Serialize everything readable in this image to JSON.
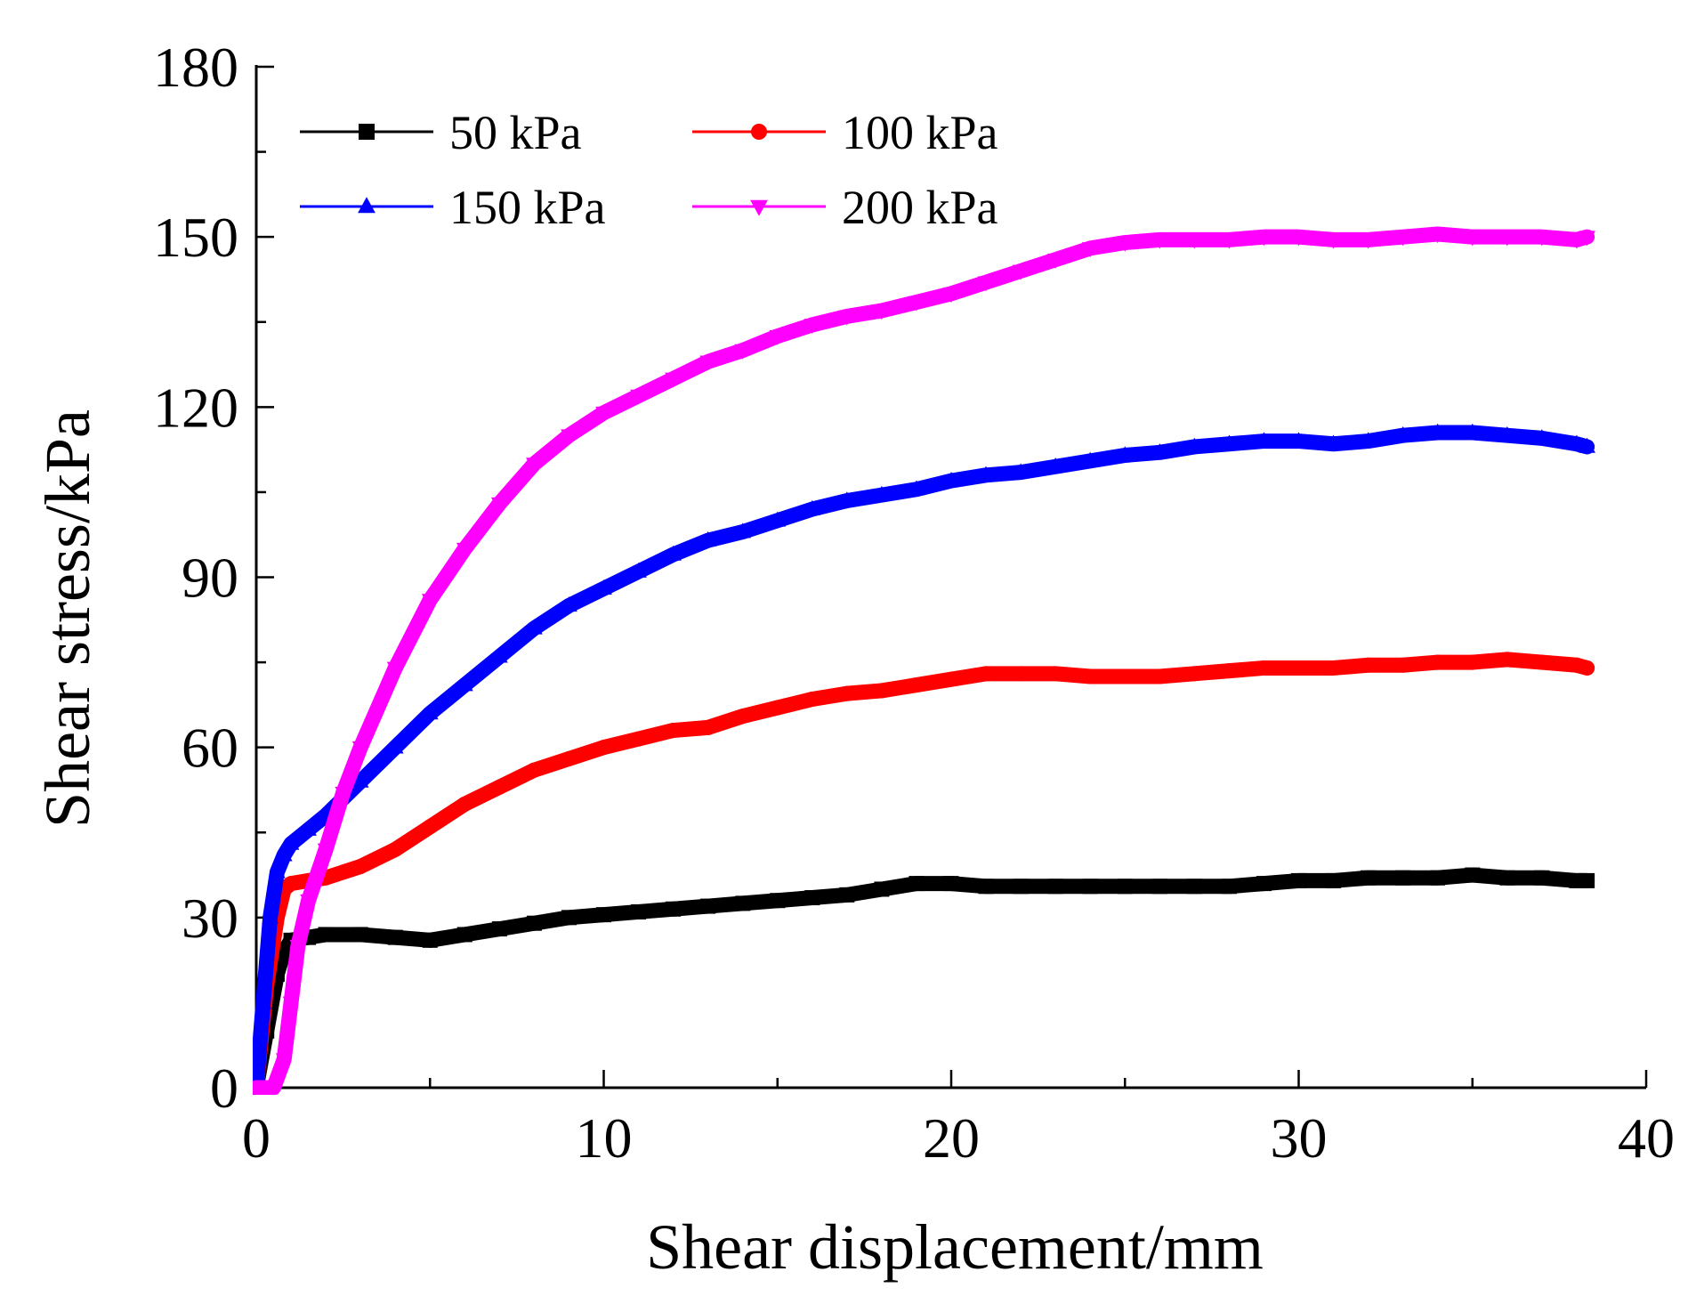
{
  "chart_data": {
    "type": "line",
    "title": "",
    "xlabel": "Shear displacement/mm",
    "ylabel": "Shear stress/kPa",
    "xlim": [
      0,
      40
    ],
    "ylim": [
      0,
      180
    ],
    "xticks": [
      0,
      10,
      20,
      30,
      40
    ],
    "xtick_labels": [
      "0",
      "10",
      "20",
      "30",
      "40"
    ],
    "yticks": [
      0,
      30,
      60,
      90,
      120,
      150,
      180
    ],
    "ytick_labels": [
      "0",
      "30",
      "60",
      "90",
      "120",
      "150",
      "180"
    ],
    "grid": false,
    "legend_position": "top-left",
    "series": [
      {
        "name": "50 kPa",
        "label": "50 kPa",
        "color": "#000000",
        "marker": "square",
        "x": [
          0,
          0.3,
          0.6,
          0.8,
          1.0,
          1.5,
          2,
          3,
          4,
          5,
          6,
          7,
          8,
          9,
          10,
          11,
          12,
          13,
          14,
          15,
          16,
          17,
          18,
          19,
          20,
          21,
          22,
          23,
          24,
          25,
          26,
          27,
          28,
          29,
          30,
          31,
          32,
          33,
          34,
          35,
          36,
          37,
          38,
          38.3
        ],
        "y": [
          0,
          10,
          20,
          24,
          26,
          26.5,
          27,
          27,
          26.5,
          26,
          27,
          28,
          29,
          30,
          30.5,
          31,
          31.5,
          32,
          32.5,
          33,
          33.5,
          34,
          35,
          36,
          36,
          35.5,
          35.5,
          35.5,
          35.5,
          35.5,
          35.5,
          35.5,
          35.5,
          36,
          36.5,
          36.5,
          37,
          37,
          37,
          37.5,
          37,
          37,
          36.5,
          36.5
        ]
      },
      {
        "name": "100 kPa",
        "label": "100 kPa",
        "color": "#ff0000",
        "marker": "circle",
        "x": [
          0,
          0.3,
          0.6,
          0.8,
          1.0,
          1.5,
          2,
          3,
          4,
          5,
          6,
          7,
          8,
          9,
          10,
          11,
          12,
          13,
          14,
          15,
          16,
          17,
          18,
          19,
          20,
          21,
          22,
          23,
          24,
          25,
          26,
          27,
          28,
          29,
          30,
          31,
          32,
          33,
          34,
          35,
          36,
          37,
          38,
          38.3
        ],
        "y": [
          0,
          18,
          30,
          35,
          36,
          36.5,
          37,
          39,
          42,
          46,
          50,
          53,
          56,
          58,
          60,
          61.5,
          63,
          63.5,
          65.5,
          67,
          68.5,
          69.5,
          70,
          71,
          72,
          73,
          73,
          73,
          72.5,
          72.5,
          72.5,
          73,
          73.5,
          74,
          74,
          74,
          74.5,
          74.5,
          75,
          75,
          75.5,
          75,
          74.5,
          74
        ]
      },
      {
        "name": "150 kPa",
        "label": "150 kPa",
        "color": "#0000ff",
        "marker": "triangle-up",
        "x": [
          0,
          0.2,
          0.4,
          0.6,
          0.8,
          1.0,
          1.5,
          2,
          3,
          4,
          5,
          6,
          7,
          8,
          9,
          10,
          11,
          12,
          13,
          14,
          15,
          16,
          17,
          18,
          19,
          20,
          21,
          22,
          23,
          24,
          25,
          26,
          27,
          28,
          29,
          30,
          31,
          32,
          33,
          34,
          35,
          36,
          37,
          38,
          38.3
        ],
        "y": [
          0,
          15,
          30,
          38,
          41,
          43,
          45.5,
          48,
          54,
          60,
          66,
          71,
          76,
          81,
          85,
          88,
          91,
          94,
          96.5,
          98,
          100,
          102,
          103.5,
          104.5,
          105.5,
          107,
          108,
          108.5,
          109.5,
          110.5,
          111.5,
          112,
          113,
          113.5,
          114,
          114,
          113.5,
          114,
          115,
          115.5,
          115.5,
          115,
          114.5,
          113.5,
          113
        ]
      },
      {
        "name": "200 kPa",
        "label": "200 kPa",
        "color": "#ff00ff",
        "marker": "triangle-down",
        "x": [
          0,
          0.5,
          0.8,
          1.0,
          1.2,
          1.5,
          2,
          2.5,
          3,
          4,
          5,
          6,
          7,
          8,
          9,
          10,
          11,
          12,
          13,
          14,
          15,
          16,
          17,
          18,
          19,
          20,
          21,
          22,
          23,
          24,
          25,
          26,
          27,
          28,
          29,
          30,
          31,
          32,
          33,
          34,
          35,
          36,
          37,
          38,
          38.3
        ],
        "y": [
          0,
          0,
          5,
          15,
          25,
          33,
          42,
          52,
          60,
          74,
          86,
          95,
          103,
          110,
          115,
          119,
          122,
          125,
          128,
          130,
          132.5,
          134.5,
          136,
          137,
          138.5,
          140,
          142,
          144,
          146,
          148,
          149,
          149.5,
          149.5,
          149.5,
          150,
          150,
          149.5,
          149.5,
          150,
          150.5,
          150,
          150,
          150,
          149.5,
          150
        ]
      }
    ]
  }
}
